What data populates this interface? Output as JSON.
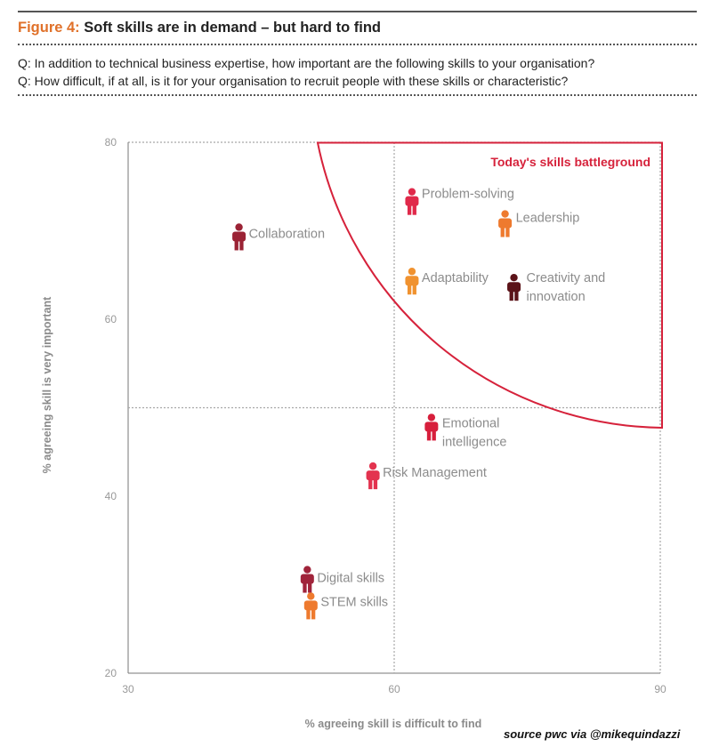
{
  "header": {
    "figure_label": "Figure 4:",
    "title": "Soft skills are in demand – but hard to find",
    "question_1": "Q: In addition to technical business expertise, how important are the following skills to your organisation?",
    "question_2": "Q: How difficult, if at all, is it for your organisation to recruit people with these skills or characteristic?"
  },
  "chart_data": {
    "type": "scatter",
    "xlabel": "% agreeing skill is difficult to find",
    "ylabel": "% agreeing skill is very important",
    "xlim": [
      30,
      90
    ],
    "ylim": [
      20,
      80
    ],
    "x_ticks": [
      "30",
      "60",
      "90"
    ],
    "y_ticks": [
      "20",
      "40",
      "60",
      "80"
    ],
    "reference_lines": {
      "x": 60,
      "y": 50
    },
    "highlight_region": {
      "label": "Today's skills battleground",
      "color": "#d6223b"
    },
    "points": [
      {
        "label": "Collaboration",
        "x": 42.5,
        "y": 69.5,
        "color": "#9b2335"
      },
      {
        "label": "Problem-solving",
        "x": 62,
        "y": 73.5,
        "color": "#e0294a"
      },
      {
        "label": "Leadership",
        "x": 72.5,
        "y": 71,
        "color": "#ee7a2e"
      },
      {
        "label": "Adaptability",
        "x": 62,
        "y": 64.5,
        "color": "#f0922f"
      },
      {
        "label": "Creativity and innovation",
        "x": 73.5,
        "y": 63.8,
        "color": "#5b1318"
      },
      {
        "label": "Emotional intelligence",
        "x": 64.2,
        "y": 48,
        "color": "#d71f3c"
      },
      {
        "label": "Risk Management",
        "x": 57.6,
        "y": 42.5,
        "color": "#e3334f"
      },
      {
        "label": "Digital skills",
        "x": 50.2,
        "y": 30.8,
        "color": "#a0243b"
      },
      {
        "label": "STEM skills",
        "x": 50.6,
        "y": 27.8,
        "color": "#ee7a2e"
      }
    ]
  },
  "footer": {
    "credit": "source pwc via @mikequindazzi"
  }
}
